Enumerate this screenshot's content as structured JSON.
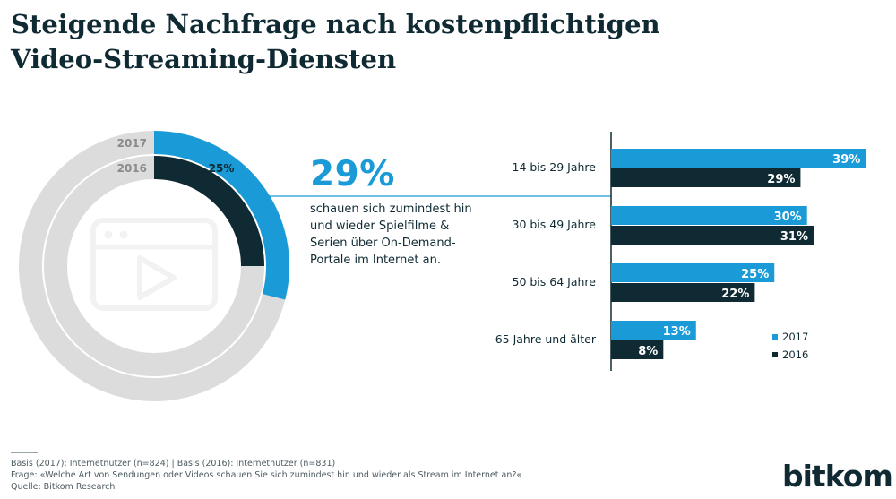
{
  "title_lines": [
    "Steigende Nachfrage nach kostenpflichtigen",
    "Video-Streaming-Diensten"
  ],
  "highlight": {
    "value": "29%",
    "text_lines": [
      "schauen sich zumindest hin",
      "und wieder Spielfilme &",
      "Serien über On-Demand-",
      "Portale im Internet an."
    ]
  },
  "colors": {
    "y2017": "#1a9bd7",
    "y2016": "#0f2a33",
    "ring_bg": "#dcdcdc",
    "icon": "#f2f2f2"
  },
  "chart_data": [
    {
      "type": "pie",
      "series": [
        {
          "name": "2017",
          "value": 29,
          "value_label": ""
        },
        {
          "name": "2016",
          "value": 25,
          "value_label": "25%"
        }
      ]
    },
    {
      "type": "bar",
      "orientation": "horizontal",
      "categories": [
        "14 bis 29 Jahre",
        "30  bis 49 Jahre",
        "50 bis 64 Jahre",
        "65 Jahre und älter"
      ],
      "series": [
        {
          "name": "2017",
          "values": [
            39,
            30,
            25,
            13
          ],
          "labels": [
            "39%",
            "30%",
            "25%",
            "13%"
          ]
        },
        {
          "name": "2016",
          "values": [
            29,
            31,
            22,
            8
          ],
          "labels": [
            "29%",
            "31%",
            "22%",
            "8%"
          ]
        }
      ],
      "legend": [
        "2017",
        "2016"
      ],
      "legend_position": "bottom-right"
    }
  ],
  "footer": {
    "basis": "Basis (2017): Internetnutzer (n=824)  |  Basis (2016): Internetnutzer (n=831)",
    "frage": "Frage: «Welche Art von Sendungen oder Videos schauen Sie sich zumindest hin und wieder als Stream im Internet an?«",
    "quelle": "Quelle: Bitkom Research"
  },
  "logo_text": "bitkom"
}
